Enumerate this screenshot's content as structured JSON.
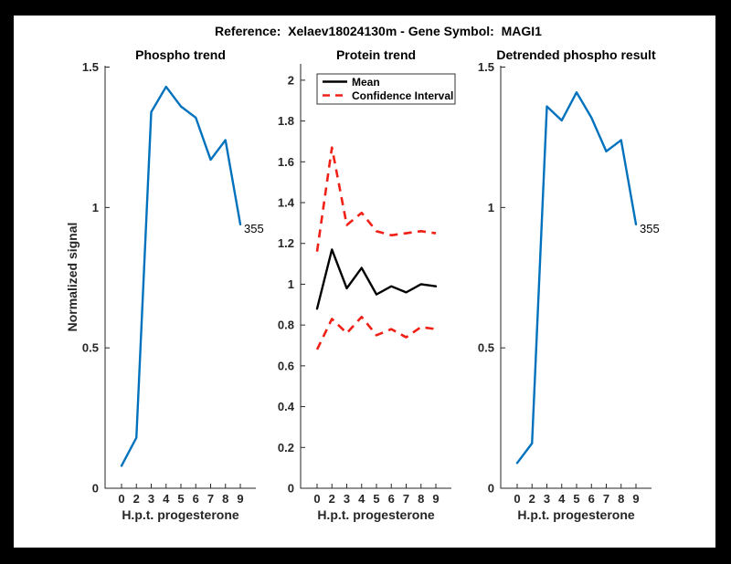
{
  "figure": {
    "title": "Reference:  Xelaev18024130m - Gene Symbol:  MAGI1"
  },
  "colors": {
    "blue": "#0072BD",
    "red": "#F12017",
    "black": "#000000",
    "axis": "#262626"
  },
  "chart_data": [
    {
      "type": "line",
      "title": "Phospho trend",
      "xlabel": "H.p.t. progesterone",
      "ylabel": "Normalized signal",
      "x": [
        0,
        2,
        3,
        4,
        5,
        6,
        7,
        8,
        9
      ],
      "x_tick_labels": [
        "0",
        "2",
        "3",
        "4",
        "5",
        "6",
        "7",
        "8",
        "9"
      ],
      "ylim": [
        0,
        1.505
      ],
      "yticks": [
        0,
        0.5,
        1,
        1.5
      ],
      "ytick_labels": [
        "0",
        "0.5",
        "1",
        "1.5"
      ],
      "grid": false,
      "series": [
        {
          "name": "phospho-signal",
          "color": "blue",
          "style": "solid",
          "values": [
            0.08,
            0.18,
            1.34,
            1.43,
            1.36,
            1.32,
            1.17,
            1.24,
            0.94
          ]
        }
      ],
      "end_label": "355"
    },
    {
      "type": "line",
      "title": "Protein trend",
      "xlabel": "H.p.t. progesterone",
      "x": [
        0,
        2,
        3,
        4,
        5,
        6,
        7,
        8,
        9
      ],
      "x_tick_labels": [
        "0",
        "2",
        "3",
        "4",
        "5",
        "6",
        "7",
        "8",
        "9"
      ],
      "ylim": [
        0,
        2.08
      ],
      "yticks": [
        0,
        0.2,
        0.4,
        0.6,
        0.8,
        1,
        1.2,
        1.4,
        1.6,
        1.8,
        2
      ],
      "ytick_labels": [
        "0",
        "0.2",
        "0.4",
        "0.6",
        "0.8",
        "1",
        "1.2",
        "1.4",
        "1.6",
        "1.8",
        "2"
      ],
      "grid": false,
      "series": [
        {
          "name": "mean",
          "color": "black",
          "style": "solid",
          "values": [
            0.88,
            1.17,
            0.98,
            1.08,
            0.95,
            0.99,
            0.96,
            1.0,
            0.99
          ]
        },
        {
          "name": "confidence-interval-upper",
          "color": "red",
          "style": "dashed",
          "values": [
            1.16,
            1.67,
            1.29,
            1.35,
            1.26,
            1.24,
            1.25,
            1.26,
            1.25
          ]
        },
        {
          "name": "confidence-interval-lower",
          "color": "red",
          "style": "dashed",
          "values": [
            0.68,
            0.83,
            0.76,
            0.84,
            0.75,
            0.78,
            0.74,
            0.79,
            0.78
          ]
        }
      ],
      "legend": {
        "position": "top-left",
        "entries": [
          {
            "label": "Mean",
            "color": "black",
            "style": "solid"
          },
          {
            "label": "Confidence Interval",
            "color": "red",
            "style": "dashed"
          }
        ]
      }
    },
    {
      "type": "line",
      "title": "Detrended phospho result",
      "xlabel": "H.p.t. progesterone",
      "x": [
        0,
        2,
        3,
        4,
        5,
        6,
        7,
        8,
        9
      ],
      "x_tick_labels": [
        "0",
        "2",
        "3",
        "4",
        "5",
        "6",
        "7",
        "8",
        "9"
      ],
      "ylim": [
        0,
        1.505
      ],
      "yticks": [
        0,
        0.5,
        1,
        1.5
      ],
      "ytick_labels": [
        "0",
        "0.5",
        "1",
        "1.5"
      ],
      "grid": false,
      "series": [
        {
          "name": "detrended-signal",
          "color": "blue",
          "style": "solid",
          "values": [
            0.09,
            0.16,
            1.36,
            1.31,
            1.41,
            1.32,
            1.2,
            1.24,
            0.94
          ]
        }
      ],
      "end_label": "355"
    }
  ]
}
